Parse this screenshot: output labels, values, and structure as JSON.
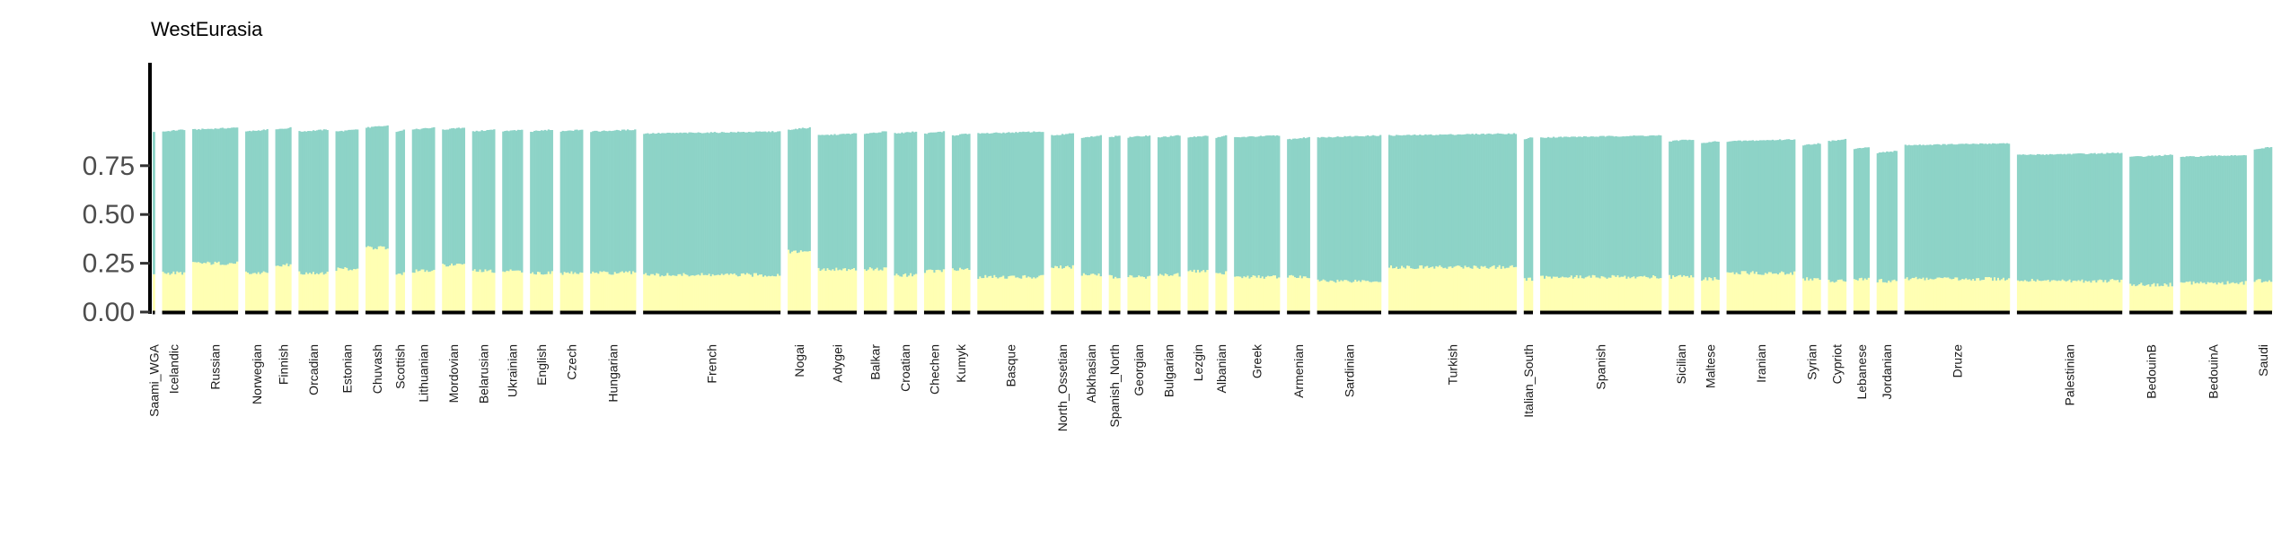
{
  "chart_data": {
    "type": "bar",
    "subtype": "stacked-admixture",
    "title": "WestEurasia",
    "xlabel": "",
    "ylabel": "",
    "ylim": [
      0,
      1
    ],
    "yticks": [
      "0.00",
      "0.25",
      "0.50",
      "0.75"
    ],
    "ytick_values": [
      0,
      0.25,
      0.5,
      0.75
    ],
    "grid": false,
    "legend": "none",
    "colors": {
      "lower": "#ffffb3",
      "upper": "#8dd3c7",
      "axis": "#000000",
      "group_bar": "#000000"
    },
    "populations": [
      {
        "name": "Saami_WGA",
        "n": 1,
        "lower": 0.2,
        "total": 0.93
      },
      {
        "name": "Icelandic",
        "n": 10,
        "lower": 0.2,
        "total": 0.93
      },
      {
        "name": "Russian",
        "n": 20,
        "lower": 0.25,
        "total": 0.94
      },
      {
        "name": "Norwegian",
        "n": 10,
        "lower": 0.2,
        "total": 0.93
      },
      {
        "name": "Finnish",
        "n": 7,
        "lower": 0.24,
        "total": 0.94
      },
      {
        "name": "Orcadian",
        "n": 13,
        "lower": 0.2,
        "total": 0.93
      },
      {
        "name": "Estonian",
        "n": 10,
        "lower": 0.22,
        "total": 0.93
      },
      {
        "name": "Chuvash",
        "n": 10,
        "lower": 0.33,
        "total": 0.95
      },
      {
        "name": "Scottish",
        "n": 4,
        "lower": 0.2,
        "total": 0.93
      },
      {
        "name": "Lithuanian",
        "n": 10,
        "lower": 0.21,
        "total": 0.94
      },
      {
        "name": "Mordovian",
        "n": 10,
        "lower": 0.24,
        "total": 0.94
      },
      {
        "name": "Belarusian",
        "n": 10,
        "lower": 0.21,
        "total": 0.93
      },
      {
        "name": "Ukrainian",
        "n": 9,
        "lower": 0.21,
        "total": 0.93
      },
      {
        "name": "English",
        "n": 10,
        "lower": 0.2,
        "total": 0.93
      },
      {
        "name": "Czech",
        "n": 10,
        "lower": 0.2,
        "total": 0.93
      },
      {
        "name": "Hungarian",
        "n": 20,
        "lower": 0.2,
        "total": 0.93
      },
      {
        "name": "French",
        "n": 60,
        "lower": 0.19,
        "total": 0.92
      },
      {
        "name": "Nogai",
        "n": 10,
        "lower": 0.31,
        "total": 0.94
      },
      {
        "name": "Adygei",
        "n": 17,
        "lower": 0.22,
        "total": 0.91
      },
      {
        "name": "Balkar",
        "n": 10,
        "lower": 0.22,
        "total": 0.92
      },
      {
        "name": "Croatian",
        "n": 10,
        "lower": 0.19,
        "total": 0.92
      },
      {
        "name": "Chechen",
        "n": 9,
        "lower": 0.21,
        "total": 0.92
      },
      {
        "name": "Kumyk",
        "n": 8,
        "lower": 0.22,
        "total": 0.91
      },
      {
        "name": "Basque",
        "n": 29,
        "lower": 0.18,
        "total": 0.92
      },
      {
        "name": "North_Ossetian",
        "n": 10,
        "lower": 0.23,
        "total": 0.91
      },
      {
        "name": "Abkhasian",
        "n": 9,
        "lower": 0.19,
        "total": 0.9
      },
      {
        "name": "Spanish_North",
        "n": 5,
        "lower": 0.18,
        "total": 0.9
      },
      {
        "name": "Georgian",
        "n": 10,
        "lower": 0.18,
        "total": 0.9
      },
      {
        "name": "Bulgarian",
        "n": 10,
        "lower": 0.19,
        "total": 0.9
      },
      {
        "name": "Lezgin",
        "n": 9,
        "lower": 0.21,
        "total": 0.9
      },
      {
        "name": "Albanian",
        "n": 5,
        "lower": 0.2,
        "total": 0.9
      },
      {
        "name": "Greek",
        "n": 20,
        "lower": 0.18,
        "total": 0.9
      },
      {
        "name": "Armenian",
        "n": 10,
        "lower": 0.18,
        "total": 0.89
      },
      {
        "name": "Sardinian",
        "n": 28,
        "lower": 0.16,
        "total": 0.9
      },
      {
        "name": "Turkish",
        "n": 56,
        "lower": 0.23,
        "total": 0.91
      },
      {
        "name": "Italian_South",
        "n": 4,
        "lower": 0.17,
        "total": 0.89
      },
      {
        "name": "Spanish",
        "n": 53,
        "lower": 0.18,
        "total": 0.9
      },
      {
        "name": "Sicilian",
        "n": 11,
        "lower": 0.18,
        "total": 0.88
      },
      {
        "name": "Maltese",
        "n": 8,
        "lower": 0.17,
        "total": 0.87
      },
      {
        "name": "Iranian",
        "n": 30,
        "lower": 0.2,
        "total": 0.88
      },
      {
        "name": "Syrian",
        "n": 8,
        "lower": 0.17,
        "total": 0.86
      },
      {
        "name": "Cypriot",
        "n": 8,
        "lower": 0.16,
        "total": 0.88
      },
      {
        "name": "Lebanese",
        "n": 7,
        "lower": 0.17,
        "total": 0.84
      },
      {
        "name": "Jordanian",
        "n": 9,
        "lower": 0.16,
        "total": 0.82
      },
      {
        "name": "Druze",
        "n": 46,
        "lower": 0.17,
        "total": 0.86
      },
      {
        "name": "Palestinian",
        "n": 46,
        "lower": 0.16,
        "total": 0.81
      },
      {
        "name": "BedouinB",
        "n": 19,
        "lower": 0.14,
        "total": 0.8
      },
      {
        "name": "BedouinA",
        "n": 29,
        "lower": 0.15,
        "total": 0.8
      },
      {
        "name": "Saudi",
        "n": 8,
        "lower": 0.16,
        "total": 0.84
      }
    ]
  }
}
